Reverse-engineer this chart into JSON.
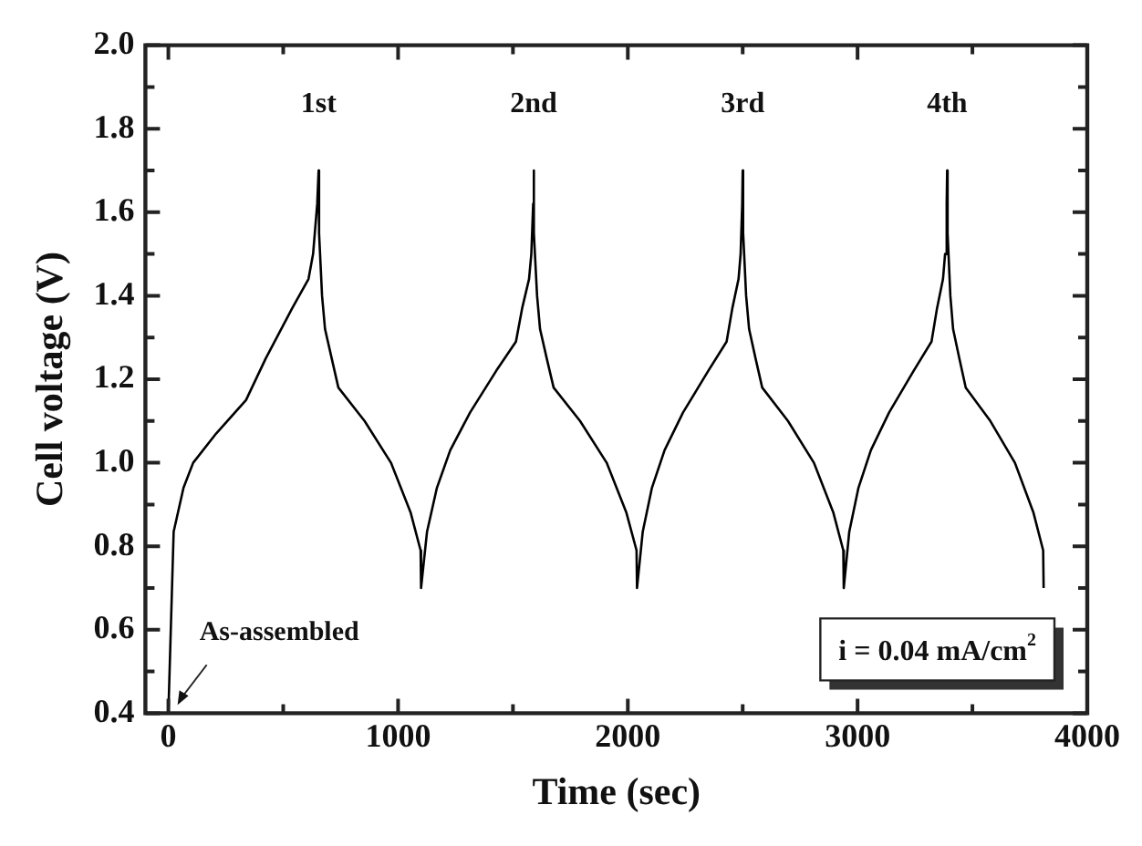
{
  "chart_data": {
    "type": "line",
    "xlabel": "Time (sec)",
    "ylabel": "Cell voltage (V)",
    "xlim": [
      -100,
      4000
    ],
    "ylim": [
      0.4,
      2.0
    ],
    "xticks": [
      0,
      {
        "value": 500,
        "label": null
      },
      1000,
      {
        "value": 1500,
        "label": null
      },
      2000,
      {
        "value": 2500,
        "label": null
      },
      3000,
      {
        "value": 3500,
        "label": null
      },
      4000
    ],
    "yticks": [
      0.4,
      {
        "value": 0.5,
        "label": null
      },
      0.6,
      {
        "value": 0.7,
        "label": null
      },
      0.8,
      {
        "value": 0.9,
        "label": null
      },
      {
        "value": 1,
        "label": "1.0"
      },
      {
        "value": 1.1,
        "label": null
      },
      1.2,
      {
        "value": 1.3,
        "label": null
      },
      1.4,
      {
        "value": 1.5,
        "label": null
      },
      1.6,
      {
        "value": 1.7,
        "label": null
      },
      1.8,
      {
        "value": 1.9,
        "label": null
      },
      {
        "value": 2,
        "label": "2.0"
      }
    ],
    "grid": false,
    "legend": false,
    "marker": "none",
    "line_style": "solid",
    "series": [
      {
        "color": "#000000",
        "x": [
          0,
          23,
          66,
          108,
          208,
          338,
          424,
          539,
          610,
          630,
          648,
          654,
          656,
          669,
          682,
          711,
          740,
          854,
          969,
          1055,
          1098,
          1100,
          1126,
          1169,
          1227,
          1313,
          1427,
          1513,
          1540,
          1570,
          1580,
          1588,
          1590,
          1592,
          1605,
          1618,
          1647,
          1677,
          1792,
          1908,
          1994,
          2038,
          2040,
          2065,
          2105,
          2160,
          2240,
          2350,
          2430,
          2455,
          2482,
          2491,
          2498,
          2500,
          2502,
          2515,
          2528,
          2556,
          2585,
          2697,
          2810,
          2895,
          2938,
          2940,
          2964,
          3004,
          3058,
          3137,
          3244,
          3322,
          3346,
          3372,
          3381,
          3388,
          3390,
          3392,
          3404,
          3416,
          3443,
          3471,
          3578,
          3685,
          3766,
          3808,
          3810
        ],
        "values": [
          0.4,
          0.835,
          0.94,
          1.0,
          1.07,
          1.15,
          1.25,
          1.37,
          1.44,
          1.5,
          1.62,
          1.7,
          1.55,
          1.4,
          1.32,
          1.25,
          1.18,
          1.1,
          1.0,
          0.88,
          0.79,
          0.7,
          0.835,
          0.94,
          1.03,
          1.12,
          1.22,
          1.29,
          1.37,
          1.44,
          1.5,
          1.62,
          1.7,
          1.55,
          1.4,
          1.32,
          1.25,
          1.18,
          1.1,
          1.0,
          0.88,
          0.79,
          0.7,
          0.835,
          0.94,
          1.03,
          1.12,
          1.22,
          1.29,
          1.37,
          1.44,
          1.5,
          1.62,
          1.7,
          1.55,
          1.4,
          1.32,
          1.25,
          1.18,
          1.1,
          1.0,
          0.88,
          0.79,
          0.7,
          0.835,
          0.94,
          1.03,
          1.12,
          1.22,
          1.29,
          1.37,
          1.44,
          1.5,
          1.62,
          1.7,
          1.55,
          1.4,
          1.32,
          1.25,
          1.18,
          1.1,
          1.0,
          0.88,
          0.79,
          0.7
        ]
      }
    ],
    "annotations": [
      {
        "text": "1st",
        "x": 654,
        "y": 1.7
      },
      {
        "text": "2nd",
        "x": 1590,
        "y": 1.7
      },
      {
        "text": "3rd",
        "x": 2500,
        "y": 1.7
      },
      {
        "text": "4th",
        "x": 3390,
        "y": 1.7
      },
      {
        "text": "As-assembled",
        "x": 40,
        "y": 0.42
      },
      "i = 0.04 mA/cm$^{2}$"
    ]
  }
}
